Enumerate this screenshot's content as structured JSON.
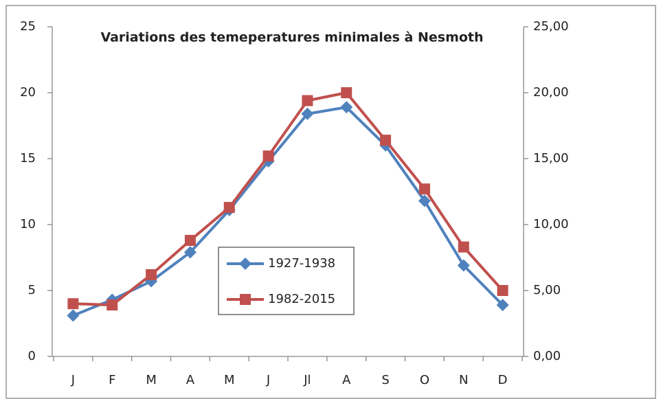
{
  "chart_data": {
    "type": "line",
    "title": "Variations des temeperatures minimales à Nesmoth",
    "categories": [
      "J",
      "F",
      "M",
      "A",
      "M",
      "J",
      "Jl",
      "A",
      "S",
      "O",
      "N",
      "D"
    ],
    "series": [
      {
        "name": "1927-1938",
        "color": "#4f81bd",
        "marker": "diamond",
        "values": [
          3.1,
          4.3,
          5.7,
          7.9,
          11.1,
          14.8,
          18.4,
          18.9,
          16.0,
          11.8,
          6.9,
          3.9
        ]
      },
      {
        "name": "1982-2015",
        "color": "#c0504d",
        "marker": "square",
        "values": [
          4.0,
          3.9,
          6.2,
          8.8,
          11.3,
          15.2,
          19.4,
          20.0,
          16.4,
          12.7,
          8.3,
          5.0
        ]
      }
    ],
    "ylim": [
      0,
      25
    ],
    "yticks": [
      0,
      5,
      10,
      15,
      20,
      25
    ],
    "y2lim": [
      0,
      25
    ],
    "y2ticks": [
      {
        "value": 0,
        "label": "0,00"
      },
      {
        "value": 5,
        "label": "5,00"
      },
      {
        "value": 10,
        "label": "10,00"
      },
      {
        "value": 15,
        "label": "15,00"
      },
      {
        "value": 20,
        "label": "20,00"
      },
      {
        "value": 25,
        "label": "25,00"
      }
    ],
    "grid": false
  }
}
